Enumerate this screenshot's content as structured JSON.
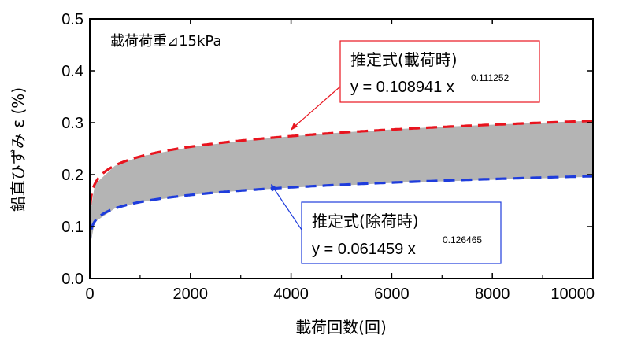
{
  "chart_data": {
    "type": "line",
    "title": "",
    "xlabel": "載荷回数(回)",
    "ylabel": "鉛直ひずみ ε (%)",
    "xlim": [
      0,
      10000
    ],
    "ylim": [
      0,
      0.5
    ],
    "x_ticks": [
      "0",
      "2000",
      "4000",
      "6000",
      "8000",
      "10000"
    ],
    "y_ticks": [
      "0.0",
      "0.1",
      "0.2",
      "0.3",
      "0.4",
      "0.5"
    ],
    "grid": false,
    "annotation": "載荷荷重⊿15kPa",
    "band": {
      "color": "#b4b4b4",
      "x": [
        0,
        100,
        500,
        1000,
        2000,
        3000,
        4000,
        5000,
        6000,
        7000,
        8000,
        9000,
        10000
      ],
      "lower": [
        0.06,
        0.109,
        0.135,
        0.147,
        0.161,
        0.169,
        0.175,
        0.179,
        0.184,
        0.187,
        0.19,
        0.193,
        0.196
      ],
      "upper": [
        0.12,
        0.181,
        0.217,
        0.235,
        0.253,
        0.265,
        0.274,
        0.281,
        0.287,
        0.292,
        0.296,
        0.3,
        0.304
      ]
    },
    "series": [
      {
        "name": "推定式(載荷時)",
        "equation": "y = 0.108941 x",
        "exponent": "0.111252",
        "coef": 0.108941,
        "power": 0.111252,
        "color": "#e8141e"
      },
      {
        "name": "推定式(除荷時)",
        "equation": "y = 0.061459 x",
        "exponent": "0.126465",
        "coef": 0.061459,
        "power": 0.126465,
        "color": "#1e3cdc"
      }
    ]
  }
}
